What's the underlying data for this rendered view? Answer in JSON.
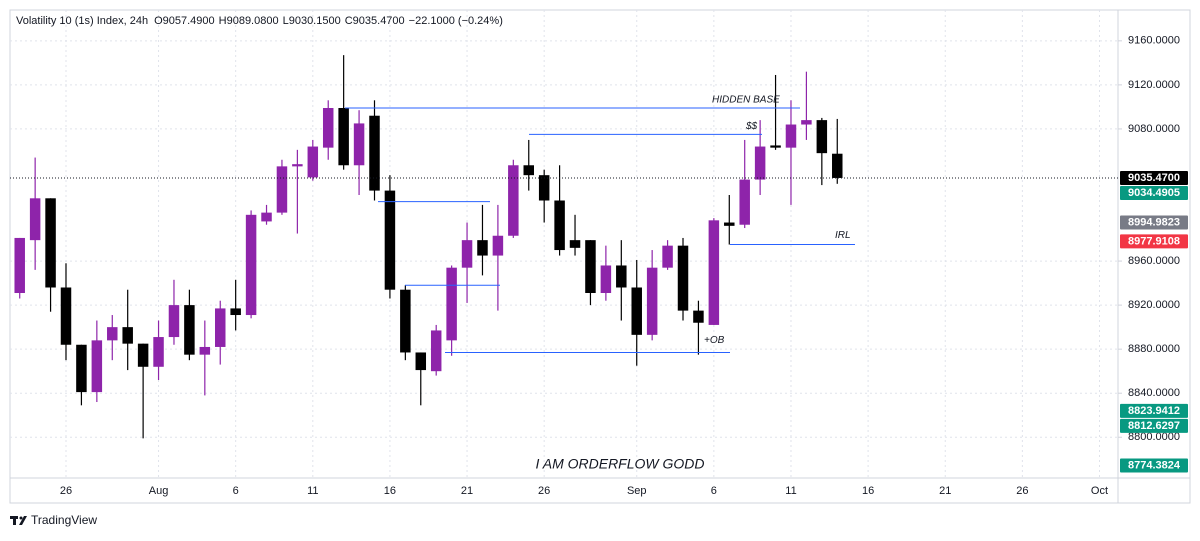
{
  "chart_data": {
    "type": "candlestick",
    "title": "Volatility 10 (1s) Index, 24h",
    "ohlc_labels": [
      "O9057.4900",
      "H9089.0800",
      "L9030.1500",
      "C9035.4700"
    ],
    "change_label": "−22.1000 (−0.24%)",
    "up_color": "#8e24aa",
    "down_color": "#000000",
    "open": [
      8931,
      8979,
      9017,
      8936,
      8884,
      8841,
      8888,
      8900,
      8885,
      8864,
      8891,
      8920,
      8875,
      8882,
      8917,
      8911,
      8996,
      9004,
      9046,
      9036,
      9063,
      9099,
      9047,
      9092,
      9024,
      8934,
      8877,
      8860,
      8888,
      8954,
      8979,
      8965,
      8983,
      9047,
      9038,
      9015,
      8979,
      8979,
      8931,
      8956,
      8936,
      8893,
      8954,
      8974,
      8915,
      8902,
      8995,
      8993,
      9034,
      9065,
      9063,
      9084,
      9088,
      9057.49
    ],
    "high": [
      8981,
      9054,
      9017,
      8958,
      8884,
      8906,
      8911,
      8934,
      8885,
      8906,
      8943,
      8934,
      8906,
      8924,
      8943,
      9006,
      9011,
      9052,
      9061,
      9070,
      9106,
      9147,
      9097,
      9106,
      9038,
      8938,
      8877,
      8902,
      8956,
      8995,
      9011,
      9011,
      9052,
      9070,
      9043,
      9047,
      9002,
      8979,
      8974,
      8979,
      8961,
      8970,
      8979,
      8981,
      8924,
      8999,
      9020,
      9070,
      9088,
      9129,
      9106,
      9132,
      9090,
      9089.08
    ],
    "low": [
      8926,
      8952,
      8914,
      8870,
      8829,
      8832,
      8870,
      8861,
      8799,
      8852,
      8884,
      8870,
      8838,
      8866,
      8897,
      8908,
      8993,
      9002,
      8985,
      9033,
      9052,
      9043,
      9020,
      9015,
      8926,
      8870,
      8829,
      8856,
      8874,
      8922,
      8947,
      8915,
      8981,
      9024,
      8995,
      8965,
      8965,
      8920,
      8924,
      8906,
      8865,
      8888,
      8952,
      8906,
      8875,
      8902,
      8975,
      8990,
      9020,
      9061,
      9011,
      9070,
      9029,
      9030.15
    ],
    "close": [
      8981,
      9017,
      8936,
      8884,
      8841,
      8888,
      8900,
      8885,
      8864,
      8891,
      8920,
      8875,
      8882,
      8917,
      8911,
      9002,
      9004,
      9046,
      9048,
      9064,
      9099,
      9047,
      9085,
      9024,
      8934,
      8877,
      8861,
      8897,
      8954,
      8979,
      8965,
      8983,
      9047,
      9038,
      9015,
      8970,
      8972,
      8931,
      8956,
      8936,
      8893,
      8954,
      8974,
      8915,
      8904,
      8997,
      8992,
      9034,
      9064,
      9063,
      9084,
      9088,
      9058,
      9035.47
    ],
    "xlim": [
      -0.63,
      71.2
    ],
    "xticks": [
      {
        "value": 3,
        "label": "26"
      },
      {
        "value": 9,
        "label": "Aug"
      },
      {
        "value": 14,
        "label": "6"
      },
      {
        "value": 19,
        "label": "11"
      },
      {
        "value": 24,
        "label": "16"
      },
      {
        "value": 29,
        "label": "21"
      },
      {
        "value": 34,
        "label": "26"
      },
      {
        "value": 40,
        "label": "Sep"
      },
      {
        "value": 45,
        "label": "6"
      },
      {
        "value": 50,
        "label": "11"
      },
      {
        "value": 55,
        "label": "16"
      },
      {
        "value": 60,
        "label": "21"
      },
      {
        "value": 65,
        "label": "26"
      },
      {
        "value": 70,
        "label": "Oct"
      }
    ],
    "ylim": [
      8763,
      9188
    ],
    "yticks": [
      {
        "value": 9160,
        "label": "9160.0000"
      },
      {
        "value": 9120,
        "label": "9120.0000"
      },
      {
        "value": 9080,
        "label": "9080.0000"
      },
      {
        "value": 8960,
        "label": "8960.0000"
      },
      {
        "value": 8920,
        "label": "8920.0000"
      },
      {
        "value": 8880,
        "label": "8880.0000"
      },
      {
        "value": 8840,
        "label": "8840.0000"
      },
      {
        "value": 8800,
        "label": "8800.0000"
      }
    ],
    "grid": true,
    "price_labels": [
      {
        "value": 9035.47,
        "label": "9035.4700",
        "color": "#000000"
      },
      {
        "value": 9034.4905,
        "label": "9034.4905",
        "color": "#089981"
      },
      {
        "value": 8994.9823,
        "label": "8994.9823",
        "color": "#787b86"
      },
      {
        "value": 8977.9108,
        "label": "8977.9108",
        "color": "#f23645"
      },
      {
        "value": 8823.9412,
        "label": "8823.9412",
        "color": "#089981"
      },
      {
        "value": 8812.6297,
        "label": "8812.6297",
        "color": "#089981"
      },
      {
        "value": 8774.3824,
        "label": "8774.3824",
        "color": "#089981"
      }
    ],
    "levels": [
      {
        "value": 9099,
        "label": "HIDDEN BASE"
      },
      {
        "value": 9075,
        "label": "$$"
      },
      {
        "value": 9014
      },
      {
        "value": 8938
      },
      {
        "value": 8877,
        "label": "+OB"
      },
      {
        "value": 8975,
        "label": "IRL"
      }
    ],
    "watermark": "I AM ORDERFLOW GODD",
    "brand": "TradingView"
  }
}
